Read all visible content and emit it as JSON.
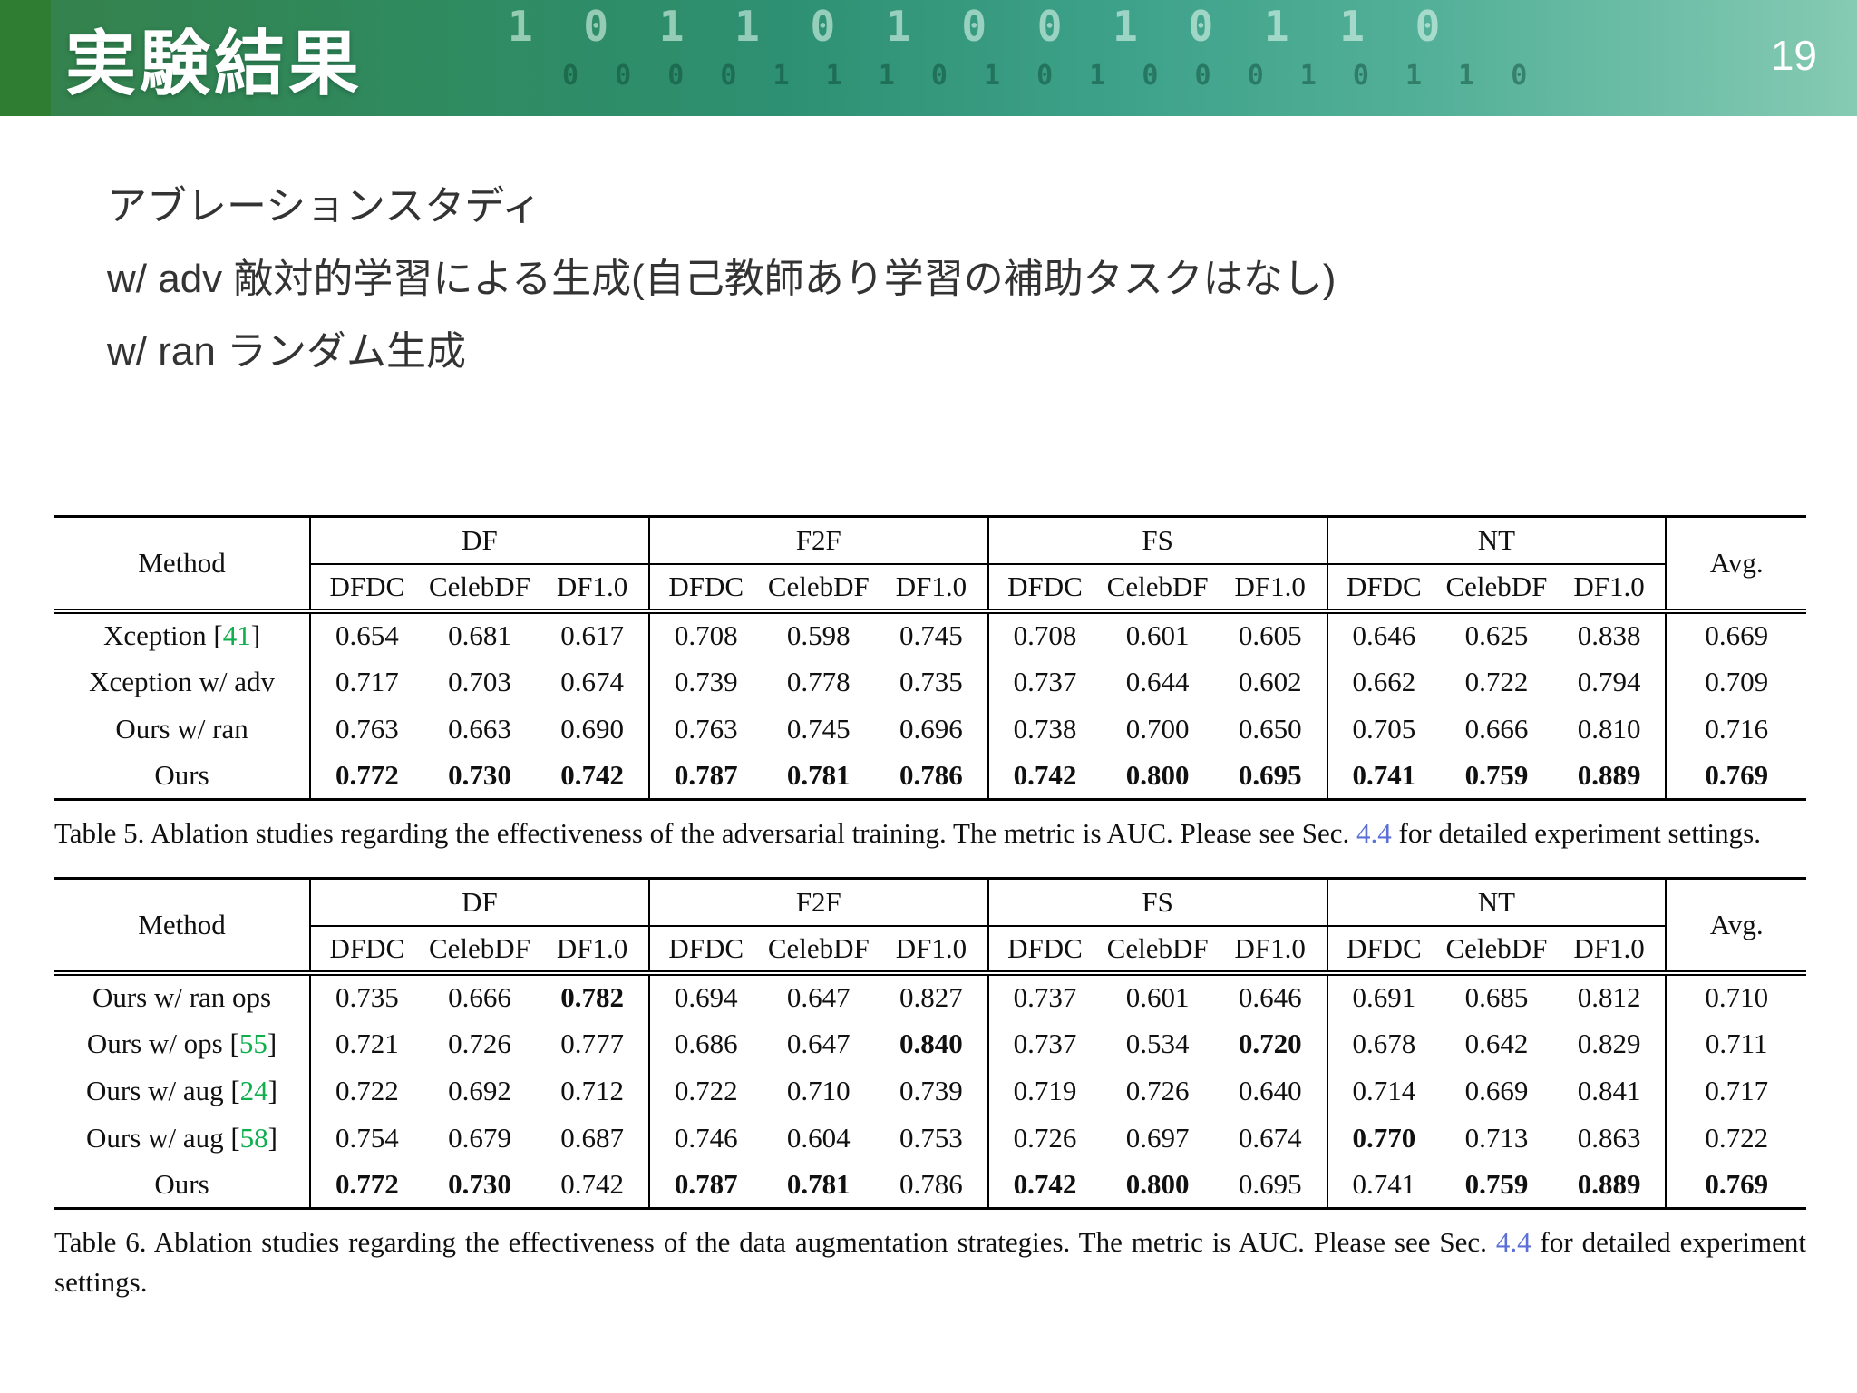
{
  "slide": {
    "title": "実験結果",
    "page_number": "19",
    "binary_row1": "1 0 1 1 0 1 0 0 1 0 1 1 0",
    "binary_row2": "0 0 0 0 1 1 1 0 1 0 1 0 0 0 1 0 1 1 0",
    "body_lines": [
      "アブレーションスタディ",
      "w/ adv 敵対的学習による生成(自己教師あり学習の補助タスクはなし)",
      "w/ ran ランダム生成"
    ]
  },
  "colors": {
    "header_green": "#2e7d32",
    "header_teal": "#74c1aa",
    "citation_green": "#0faf4d",
    "section_link_blue": "#5b6fd6"
  },
  "tables": [
    {
      "name": "table5",
      "method_header": "Method",
      "avg_header": "Avg.",
      "groups": [
        "DF",
        "F2F",
        "FS",
        "NT"
      ],
      "subcolumns": [
        "DFDC",
        "CelebDF",
        "DF1.0"
      ],
      "rows": [
        {
          "method": "Xception",
          "cite": "41",
          "values": [
            "0.654",
            "0.681",
            "0.617",
            "0.708",
            "0.598",
            "0.745",
            "0.708",
            "0.601",
            "0.605",
            "0.646",
            "0.625",
            "0.838",
            "0.669"
          ],
          "bold": []
        },
        {
          "method": "Xception w/ adv",
          "cite": "",
          "values": [
            "0.717",
            "0.703",
            "0.674",
            "0.739",
            "0.778",
            "0.735",
            "0.737",
            "0.644",
            "0.602",
            "0.662",
            "0.722",
            "0.794",
            "0.709"
          ],
          "bold": []
        },
        {
          "method": "Ours w/ ran",
          "cite": "",
          "values": [
            "0.763",
            "0.663",
            "0.690",
            "0.763",
            "0.745",
            "0.696",
            "0.738",
            "0.700",
            "0.650",
            "0.705",
            "0.666",
            "0.810",
            "0.716"
          ],
          "bold": []
        },
        {
          "method": "Ours",
          "cite": "",
          "values": [
            "0.772",
            "0.730",
            "0.742",
            "0.787",
            "0.781",
            "0.786",
            "0.742",
            "0.800",
            "0.695",
            "0.741",
            "0.759",
            "0.889",
            "0.769"
          ],
          "bold": [
            0,
            1,
            2,
            3,
            4,
            5,
            6,
            7,
            8,
            9,
            10,
            11,
            12
          ]
        }
      ],
      "caption": {
        "before": "Table 5. Ablation studies regarding the effectiveness of the adversarial training. The metric is AUC. Please see Sec.",
        "link": "4.4",
        "after": "for detailed experiment settings."
      }
    },
    {
      "name": "table6",
      "method_header": "Method",
      "avg_header": "Avg.",
      "groups": [
        "DF",
        "F2F",
        "FS",
        "NT"
      ],
      "subcolumns": [
        "DFDC",
        "CelebDF",
        "DF1.0"
      ],
      "rows": [
        {
          "method": "Ours w/ ran ops",
          "cite": "",
          "values": [
            "0.735",
            "0.666",
            "0.782",
            "0.694",
            "0.647",
            "0.827",
            "0.737",
            "0.601",
            "0.646",
            "0.691",
            "0.685",
            "0.812",
            "0.710"
          ],
          "bold": [
            2
          ]
        },
        {
          "method": "Ours w/ ops",
          "cite": "55",
          "values": [
            "0.721",
            "0.726",
            "0.777",
            "0.686",
            "0.647",
            "0.840",
            "0.737",
            "0.534",
            "0.720",
            "0.678",
            "0.642",
            "0.829",
            "0.711"
          ],
          "bold": [
            5,
            8
          ]
        },
        {
          "method": "Ours w/ aug",
          "cite": "24",
          "values": [
            "0.722",
            "0.692",
            "0.712",
            "0.722",
            "0.710",
            "0.739",
            "0.719",
            "0.726",
            "0.640",
            "0.714",
            "0.669",
            "0.841",
            "0.717"
          ],
          "bold": []
        },
        {
          "method": "Ours w/ aug",
          "cite": "58",
          "values": [
            "0.754",
            "0.679",
            "0.687",
            "0.746",
            "0.604",
            "0.753",
            "0.726",
            "0.697",
            "0.674",
            "0.770",
            "0.713",
            "0.863",
            "0.722"
          ],
          "bold": [
            9
          ]
        },
        {
          "method": "Ours",
          "cite": "",
          "values": [
            "0.772",
            "0.730",
            "0.742",
            "0.787",
            "0.781",
            "0.786",
            "0.742",
            "0.800",
            "0.695",
            "0.741",
            "0.759",
            "0.889",
            "0.769"
          ],
          "bold": [
            0,
            1,
            3,
            4,
            6,
            7,
            10,
            11,
            12
          ]
        }
      ],
      "caption": {
        "before": "Table 6. Ablation studies regarding the effectiveness of the data augmentation strategies. The metric is AUC. Please see Sec.",
        "link": "4.4",
        "after": "for detailed experiment settings."
      }
    }
  ]
}
